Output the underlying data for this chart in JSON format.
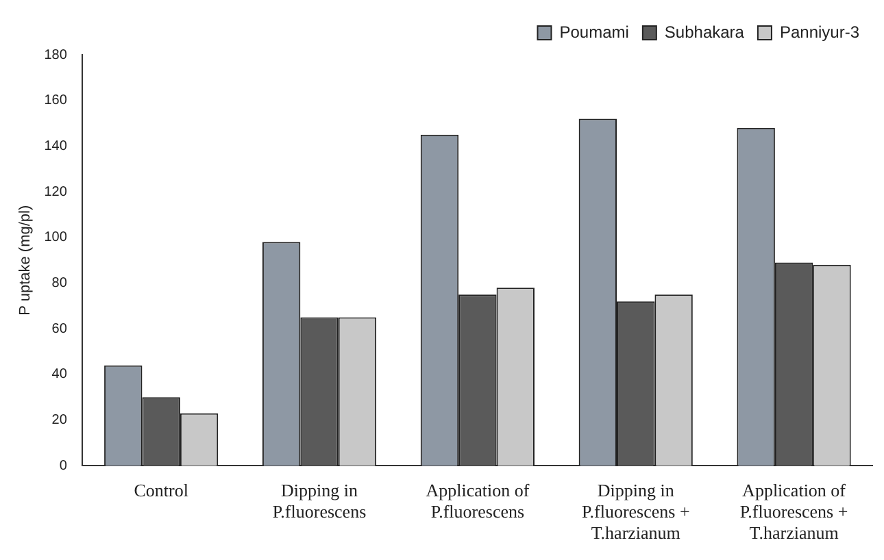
{
  "chart_data": {
    "type": "bar",
    "ylabel": "P uptake (mg/pl)",
    "categories": [
      "Control",
      "Dipping in\nP.fluorescens",
      "Application of\nP.fluorescens",
      "Dipping in\nP.fluorescens +\nT.harzianum",
      "Application of\nP.fluorescens +\nT.harzianum"
    ],
    "series": [
      {
        "name": "Poumami",
        "color": "#8e98a4",
        "values": [
          44,
          98,
          145,
          152,
          148
        ]
      },
      {
        "name": "Subhakara",
        "color": "#5a5a5a",
        "values": [
          30,
          65,
          75,
          72,
          89
        ]
      },
      {
        "name": "Panniyur-3",
        "color": "#c8c8c8",
        "values": [
          23,
          65,
          78,
          75,
          88
        ]
      }
    ],
    "ylim": [
      0,
      180
    ],
    "yticks": [
      0,
      20,
      40,
      60,
      80,
      100,
      120,
      140,
      160,
      180
    ],
    "grid": false,
    "legend": "top right"
  }
}
